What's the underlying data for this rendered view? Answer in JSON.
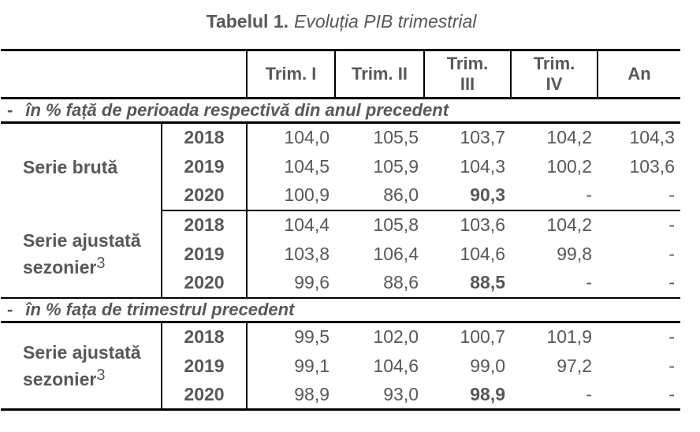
{
  "title": {
    "prefix": "Tabelul 1.",
    "text": "Evoluția PIB trimestrial"
  },
  "table": {
    "corner": "",
    "headers": [
      "Trim. I",
      "Trim. II",
      "Trim.\nIII",
      "Trim.\nIV",
      "An"
    ],
    "sections": [
      {
        "dash": "-",
        "label": "în % față de perioada respectivă din anul precedent",
        "groups": [
          {
            "name_line1": "Serie brută",
            "rows": [
              {
                "year": "2018",
                "values": [
                  "104,0",
                  "105,5",
                  "103,7",
                  "104,2",
                  "104,3"
                ]
              },
              {
                "year": "2019",
                "values": [
                  "104,5",
                  "105,9",
                  "104,3",
                  "100,2",
                  "103,6"
                ]
              },
              {
                "year": "2020",
                "values": [
                  "100,9",
                  "86,0",
                  "90,3",
                  "-",
                  "-"
                ]
              }
            ]
          },
          {
            "name_line1": "Serie ajustată",
            "name_line2": "sezonier",
            "superscript": "3",
            "rows": [
              {
                "year": "2018",
                "values": [
                  "104,4",
                  "105,8",
                  "103,6",
                  "104,2",
                  "-"
                ]
              },
              {
                "year": "2019",
                "values": [
                  "103,8",
                  "106,4",
                  "104,6",
                  "99,8",
                  "-"
                ]
              },
              {
                "year": "2020",
                "values": [
                  "99,6",
                  "88,6",
                  "88,5",
                  "-",
                  "-"
                ]
              }
            ]
          }
        ]
      },
      {
        "dash": "-",
        "label": "în % fața de trimestrul precedent",
        "groups": [
          {
            "name_line1": "Serie ajustată",
            "name_line2": "sezonier",
            "superscript": "3",
            "rows": [
              {
                "year": "2018",
                "values": [
                  "99,5",
                  "102,0",
                  "100,7",
                  "101,9",
                  "-"
                ]
              },
              {
                "year": "2019",
                "values": [
                  "99,1",
                  "104,6",
                  "99,0",
                  "97,2",
                  "-"
                ]
              },
              {
                "year": "2020",
                "values": [
                  "98,9",
                  "93,0",
                  "98,9",
                  "-",
                  "-"
                ]
              }
            ]
          }
        ]
      }
    ]
  },
  "colors": {
    "text": "#58585a",
    "border": "#000000",
    "background": "#ffffff"
  }
}
